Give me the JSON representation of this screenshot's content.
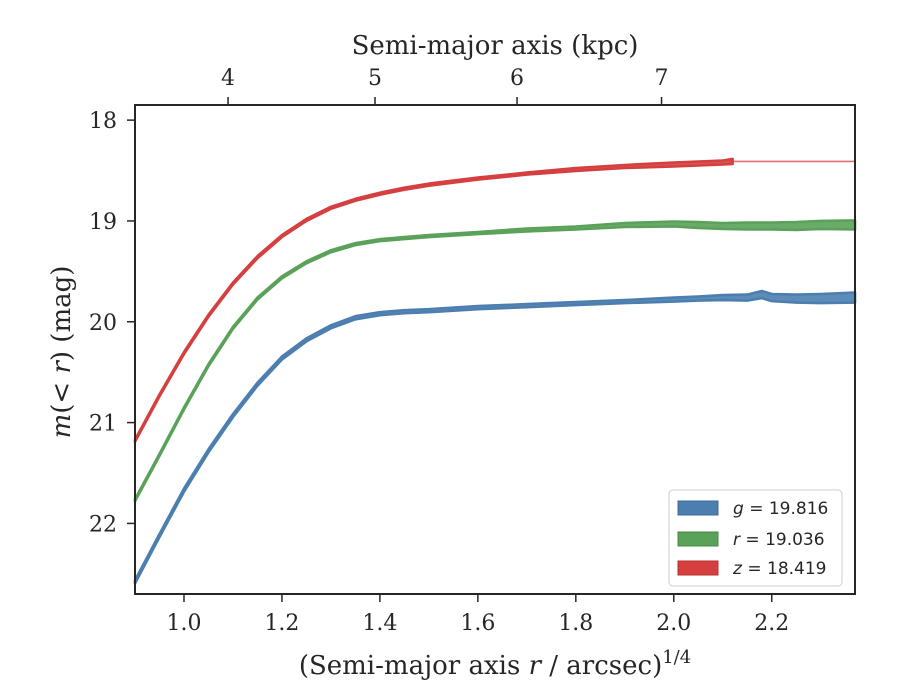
{
  "chart_data": {
    "type": "line",
    "xlabel": "(Semi-major axis r / arcsec)",
    "xlabel_parts": {
      "pre": "(Semi-major axis ",
      "var": "r",
      "post": " / arcsec)",
      "sup": "1/4"
    },
    "ylabel": "m(< r) (mag)",
    "ylabel_parts": {
      "m": "m",
      "open": "(",
      "lt": "< ",
      "r": "r",
      "close": ")",
      "unit": " (mag)"
    },
    "top_xlabel": "Semi-major axis (kpc)",
    "xlim": [
      0.9,
      2.37
    ],
    "ylim": [
      22.7,
      17.85
    ],
    "y_inverted": true,
    "x_ticks": [
      1.0,
      1.2,
      1.4,
      1.6,
      1.8,
      2.0,
      2.2
    ],
    "x_tick_labels": [
      "1.0",
      "1.2",
      "1.4",
      "1.6",
      "1.8",
      "2.0",
      "2.2"
    ],
    "y_ticks": [
      18,
      19,
      20,
      21,
      22
    ],
    "y_tick_labels": [
      "18",
      "19",
      "20",
      "21",
      "22"
    ],
    "top_x_ticks_kpc": [
      4,
      5,
      6,
      7
    ],
    "top_x_tick_labels": [
      "4",
      "5",
      "6",
      "7"
    ],
    "top_x_tick_positions": [
      1.09,
      1.39,
      1.68,
      1.975
    ],
    "grid": false,
    "legend_position": "lower-right",
    "series": [
      {
        "name": "g = 19.816",
        "band": "g",
        "mag": "19.816",
        "color": "#4c7fb0",
        "x": [
          0.9,
          0.95,
          1.0,
          1.05,
          1.1,
          1.15,
          1.2,
          1.25,
          1.3,
          1.35,
          1.4,
          1.45,
          1.5,
          1.6,
          1.7,
          1.8,
          1.9,
          2.0,
          2.05,
          2.1,
          2.15,
          2.18,
          2.2,
          2.25,
          2.3,
          2.37
        ],
        "y": [
          22.58,
          22.12,
          21.67,
          21.28,
          20.93,
          20.62,
          20.36,
          20.18,
          20.05,
          19.96,
          19.92,
          19.9,
          19.89,
          19.86,
          19.84,
          19.82,
          19.8,
          19.78,
          19.77,
          19.76,
          19.76,
          19.73,
          19.76,
          19.77,
          19.77,
          19.76
        ],
        "band_width": [
          0.03,
          0.03,
          0.03,
          0.03,
          0.03,
          0.03,
          0.03,
          0.03,
          0.03,
          0.03,
          0.03,
          0.03,
          0.03,
          0.03,
          0.03,
          0.03,
          0.03,
          0.04,
          0.04,
          0.05,
          0.06,
          0.07,
          0.07,
          0.08,
          0.09,
          0.1
        ]
      },
      {
        "name": "r = 19.036",
        "band": "r",
        "mag": "19.036",
        "color": "#5aa25a",
        "x": [
          0.9,
          0.95,
          1.0,
          1.05,
          1.1,
          1.15,
          1.2,
          1.25,
          1.3,
          1.35,
          1.4,
          1.45,
          1.5,
          1.6,
          1.7,
          1.8,
          1.9,
          2.0,
          2.05,
          2.1,
          2.15,
          2.2,
          2.25,
          2.3,
          2.37
        ],
        "y": [
          21.77,
          21.32,
          20.86,
          20.43,
          20.06,
          19.77,
          19.56,
          19.41,
          19.3,
          19.23,
          19.19,
          19.17,
          19.15,
          19.12,
          19.09,
          19.07,
          19.04,
          19.03,
          19.04,
          19.05,
          19.05,
          19.05,
          19.05,
          19.04,
          19.04
        ],
        "band_width": [
          0.02,
          0.02,
          0.02,
          0.02,
          0.02,
          0.02,
          0.02,
          0.02,
          0.02,
          0.02,
          0.02,
          0.02,
          0.02,
          0.02,
          0.03,
          0.03,
          0.04,
          0.05,
          0.06,
          0.06,
          0.07,
          0.07,
          0.08,
          0.08,
          0.09
        ]
      },
      {
        "name": "z = 18.419",
        "band": "z",
        "mag": "18.419",
        "color": "#d63f3f",
        "x": [
          0.9,
          0.95,
          1.0,
          1.05,
          1.1,
          1.15,
          1.2,
          1.25,
          1.3,
          1.35,
          1.4,
          1.45,
          1.5,
          1.6,
          1.7,
          1.8,
          1.9,
          2.0,
          2.05,
          2.1,
          2.12
        ],
        "y": [
          21.18,
          20.73,
          20.31,
          19.94,
          19.62,
          19.36,
          19.15,
          18.99,
          18.87,
          18.79,
          18.73,
          18.68,
          18.64,
          18.58,
          18.53,
          18.49,
          18.46,
          18.44,
          18.43,
          18.42,
          18.41
        ],
        "band_width": [
          0.02,
          0.02,
          0.02,
          0.02,
          0.02,
          0.02,
          0.02,
          0.02,
          0.02,
          0.02,
          0.02,
          0.02,
          0.02,
          0.02,
          0.02,
          0.03,
          0.03,
          0.04,
          0.04,
          0.04,
          0.05
        ],
        "extension": {
          "x": [
            2.12,
            2.37
          ],
          "y": [
            18.41,
            18.41
          ]
        }
      }
    ]
  }
}
